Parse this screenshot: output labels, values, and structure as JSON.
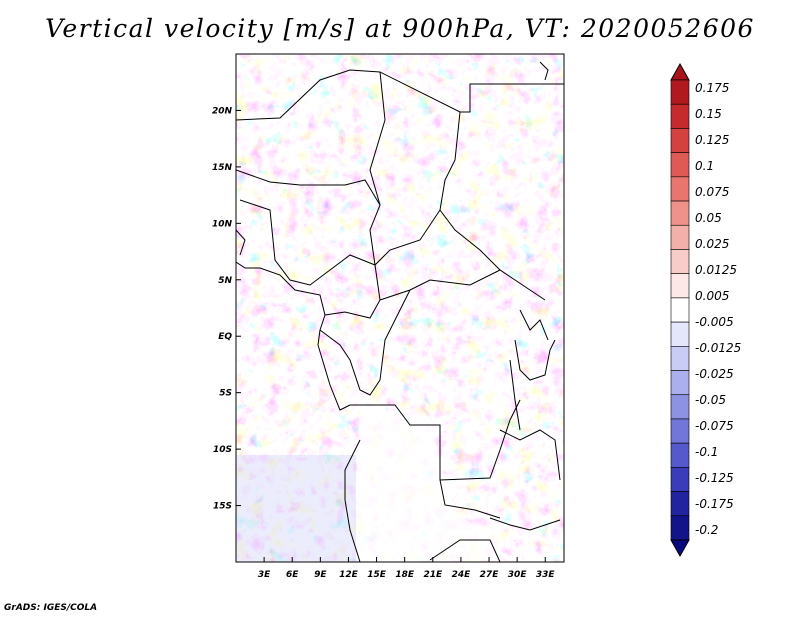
{
  "title": "Vertical velocity [m/s] at 900hPa, VT: 2020052606",
  "credit": "GrADS: IGES/COLA",
  "map": {
    "lon_range": [
      0,
      35
    ],
    "lat_range": [
      -20,
      25
    ],
    "x_ticks": [
      "3E",
      "6E",
      "9E",
      "12E",
      "15E",
      "18E",
      "21E",
      "24E",
      "27E",
      "30E",
      "33E"
    ],
    "x_tick_values": [
      3,
      6,
      9,
      12,
      15,
      18,
      21,
      24,
      27,
      30,
      33
    ],
    "y_ticks": [
      "20N",
      "15N",
      "10N",
      "5N",
      "EQ",
      "5S",
      "10S",
      "15S"
    ],
    "y_tick_values": [
      20,
      15,
      10,
      5,
      0,
      -5,
      -10,
      -15
    ]
  },
  "colorbar": {
    "labels": [
      "0.175",
      "0.15",
      "0.125",
      "0.1",
      "0.075",
      "0.05",
      "0.025",
      "0.0125",
      "0.005",
      "-0.005",
      "-0.0125",
      "-0.025",
      "-0.05",
      "-0.075",
      "-0.1",
      "-0.125",
      "-0.175",
      "-0.2"
    ],
    "colors": [
      "#b01a1e",
      "#c62a2d",
      "#d4423f",
      "#e05a55",
      "#e8766f",
      "#ee928b",
      "#f3b0aa",
      "#f8ccc8",
      "#fce8e6",
      "#ffffff",
      "#e4e6fb",
      "#c9ccf5",
      "#abafed",
      "#8e92e3",
      "#7276d8",
      "#5559cc",
      "#3a3cb9",
      "#22239f",
      "#13138a"
    ],
    "top_color": "#a8141a",
    "bottom_color": "#0a0a80"
  }
}
